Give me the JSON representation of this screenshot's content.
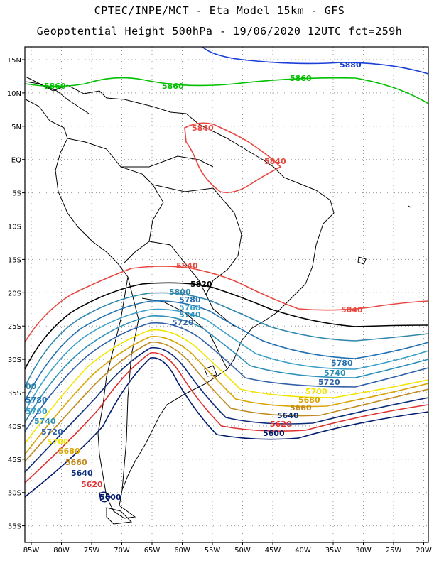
{
  "header": {
    "line1": "CPTEC/INPE/MCT -  Eta Model 15km - GFS",
    "line2": "Geopotential Height 500hPa - 19/06/2020 12UTC fct=259h"
  },
  "axes": {
    "lat_labels": [
      "15N",
      "10N",
      "5N",
      "EQ",
      "5S",
      "10S",
      "15S",
      "20S",
      "25S",
      "30S",
      "35S",
      "40S",
      "45S",
      "50S",
      "55S"
    ],
    "lon_labels": [
      "85W",
      "80W",
      "75W",
      "70W",
      "65W",
      "60W",
      "55W",
      "50W",
      "45W",
      "40W",
      "35W",
      "30W",
      "25W",
      "20W"
    ]
  },
  "colors": {
    "c5860": "#1a3fd9",
    "c5880": "#00c000",
    "c5840": "#e8473f",
    "c5820": "#000000",
    "c5800": "#2e86ab",
    "c5780": "#1f6fb2",
    "c5760": "#3aa0c8",
    "c5740": "#2c8fb8",
    "c5720": "#3060a8",
    "c5700": "#f2e600",
    "c5680": "#d9a300",
    "c5660": "#c08a20",
    "c5640": "#0a2a7a",
    "c5620": "#e03030",
    "c5600": "#001a6e"
  },
  "contour_labels": {
    "l1": "5880",
    "l2": "5860",
    "l3": "5860",
    "l4": "5860",
    "l5": "5840",
    "l6": "5840",
    "l7": "5840",
    "l8": "5840",
    "l9": "5820",
    "l10": "5800",
    "l11": "5780",
    "l12": "5760",
    "l13": "5740",
    "l14": "5720",
    "l15": "5780",
    "l16": "5740",
    "l17": "5720",
    "l18": "5700",
    "l19": "5680",
    "l20": "5660",
    "l21": "5640",
    "l22": "5620",
    "l23": "5600",
    "w1": "00",
    "w2": "5780",
    "w3": "5760",
    "w4": "5740",
    "w5": "5720",
    "w6": "5700",
    "w7": "5680",
    "w8": "5660",
    "w9": "5640",
    "w10": "5620",
    "w11": "5600"
  }
}
